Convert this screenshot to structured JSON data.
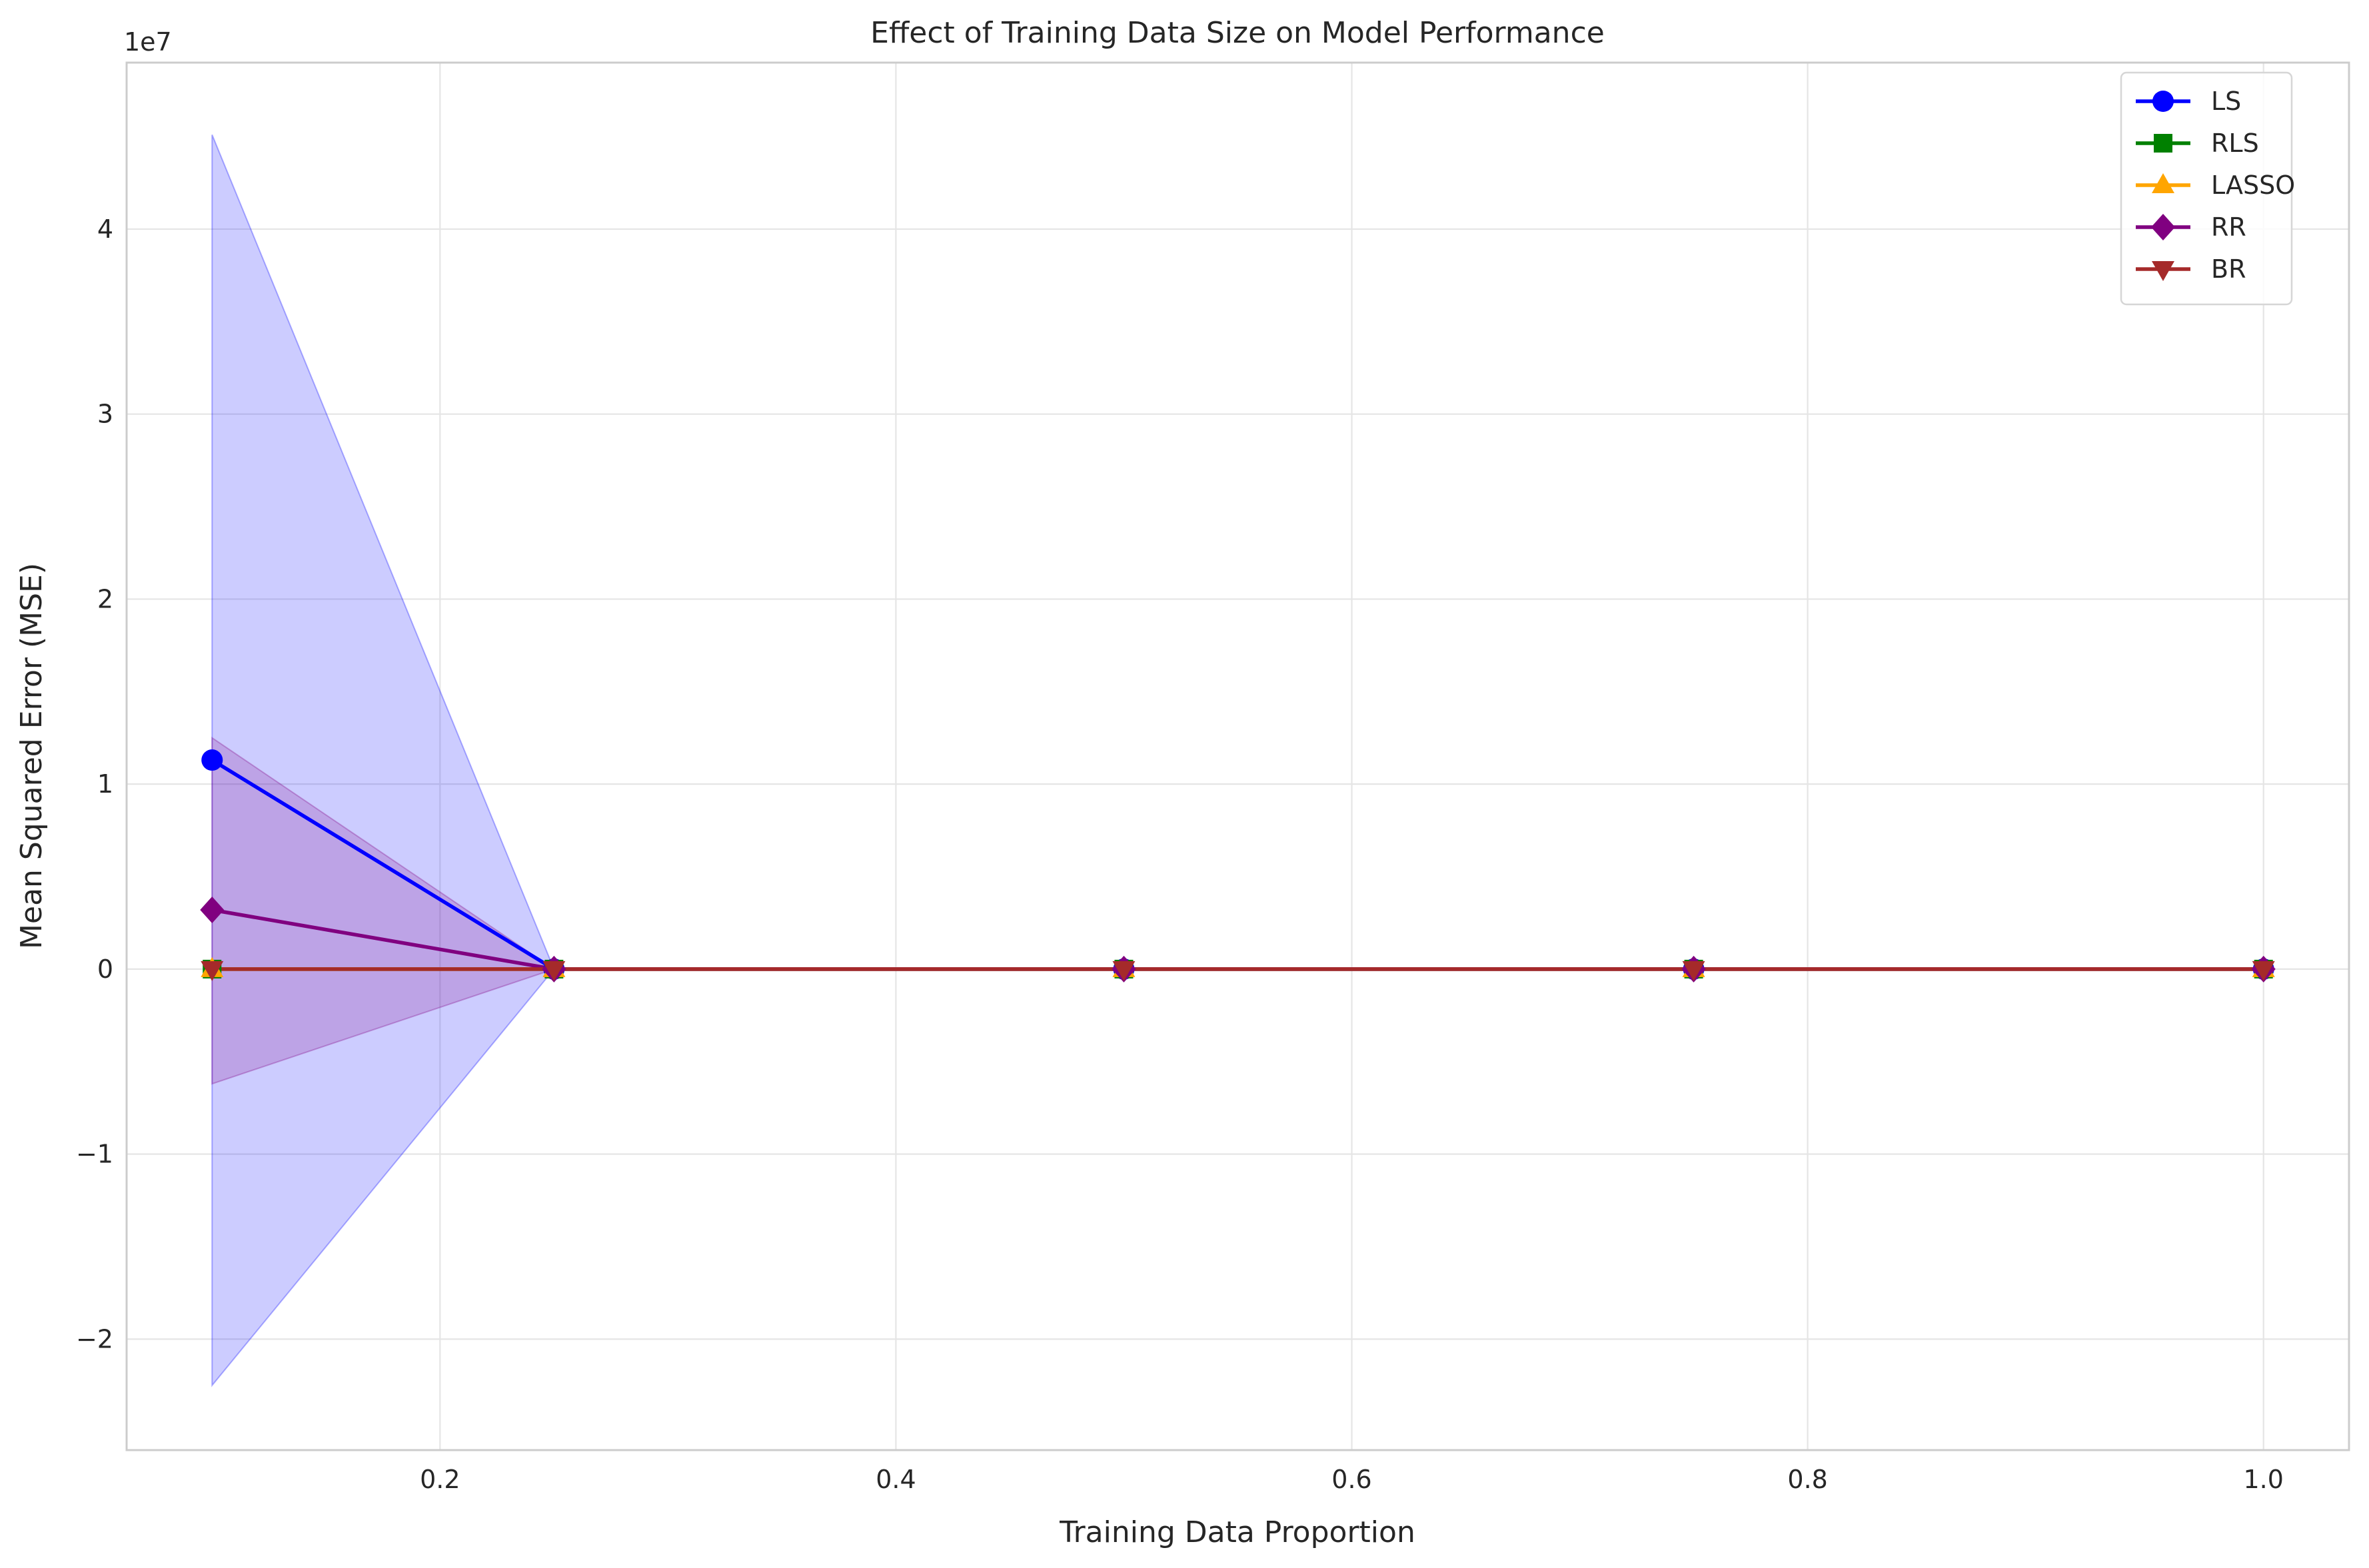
{
  "chart_data": {
    "type": "line",
    "title": "Effect of Training Data Size on Model Performance",
    "xlabel": "Training Data Proportion",
    "ylabel": "Mean Squared Error (MSE)",
    "y_offset_label": "1e7",
    "xlim": [
      0.0625,
      1.0375
    ],
    "ylim": [
      -2.6,
      4.9
    ],
    "x_ticks": [
      0.2,
      0.4,
      0.6,
      0.8,
      1.0
    ],
    "x_tick_labels": [
      "0.2",
      "0.4",
      "0.6",
      "0.8",
      "1.0"
    ],
    "y_ticks": [
      -2,
      -1,
      0,
      1,
      2,
      3,
      4
    ],
    "y_tick_labels": [
      "−2",
      "−1",
      "0",
      "1",
      "2",
      "3",
      "4"
    ],
    "grid": true,
    "legend_position": "top-right",
    "x": [
      0.1,
      0.25,
      0.5,
      0.75,
      1.0
    ],
    "series": [
      {
        "name": "LS",
        "color": "#0000ff",
        "marker": "circle",
        "values": [
          1.13,
          0.0,
          0.0,
          0.0,
          0.0
        ],
        "band_lower": [
          -2.25,
          0.0,
          0.0,
          0.0,
          0.0
        ],
        "band_upper": [
          4.51,
          0.0,
          0.0,
          0.0,
          0.0
        ]
      },
      {
        "name": "RLS",
        "color": "#008000",
        "marker": "square",
        "values": [
          0.0,
          0.0,
          0.0,
          0.0,
          0.0
        ]
      },
      {
        "name": "LASSO",
        "color": "#ffa500",
        "marker": "triangle-up",
        "values": [
          0.0,
          0.0,
          0.0,
          0.0,
          0.0
        ]
      },
      {
        "name": "RR",
        "color": "#800080",
        "marker": "diamond",
        "values": [
          0.32,
          0.0,
          0.0,
          0.0,
          0.0
        ],
        "band_lower": [
          -0.62,
          0.0,
          0.0,
          0.0,
          0.0
        ],
        "band_upper": [
          1.25,
          0.0,
          0.0,
          0.0,
          0.0
        ]
      },
      {
        "name": "BR",
        "color": "#a52a2a",
        "marker": "triangle-down",
        "values": [
          0.0,
          0.0,
          0.0,
          0.0,
          0.0
        ]
      }
    ]
  }
}
